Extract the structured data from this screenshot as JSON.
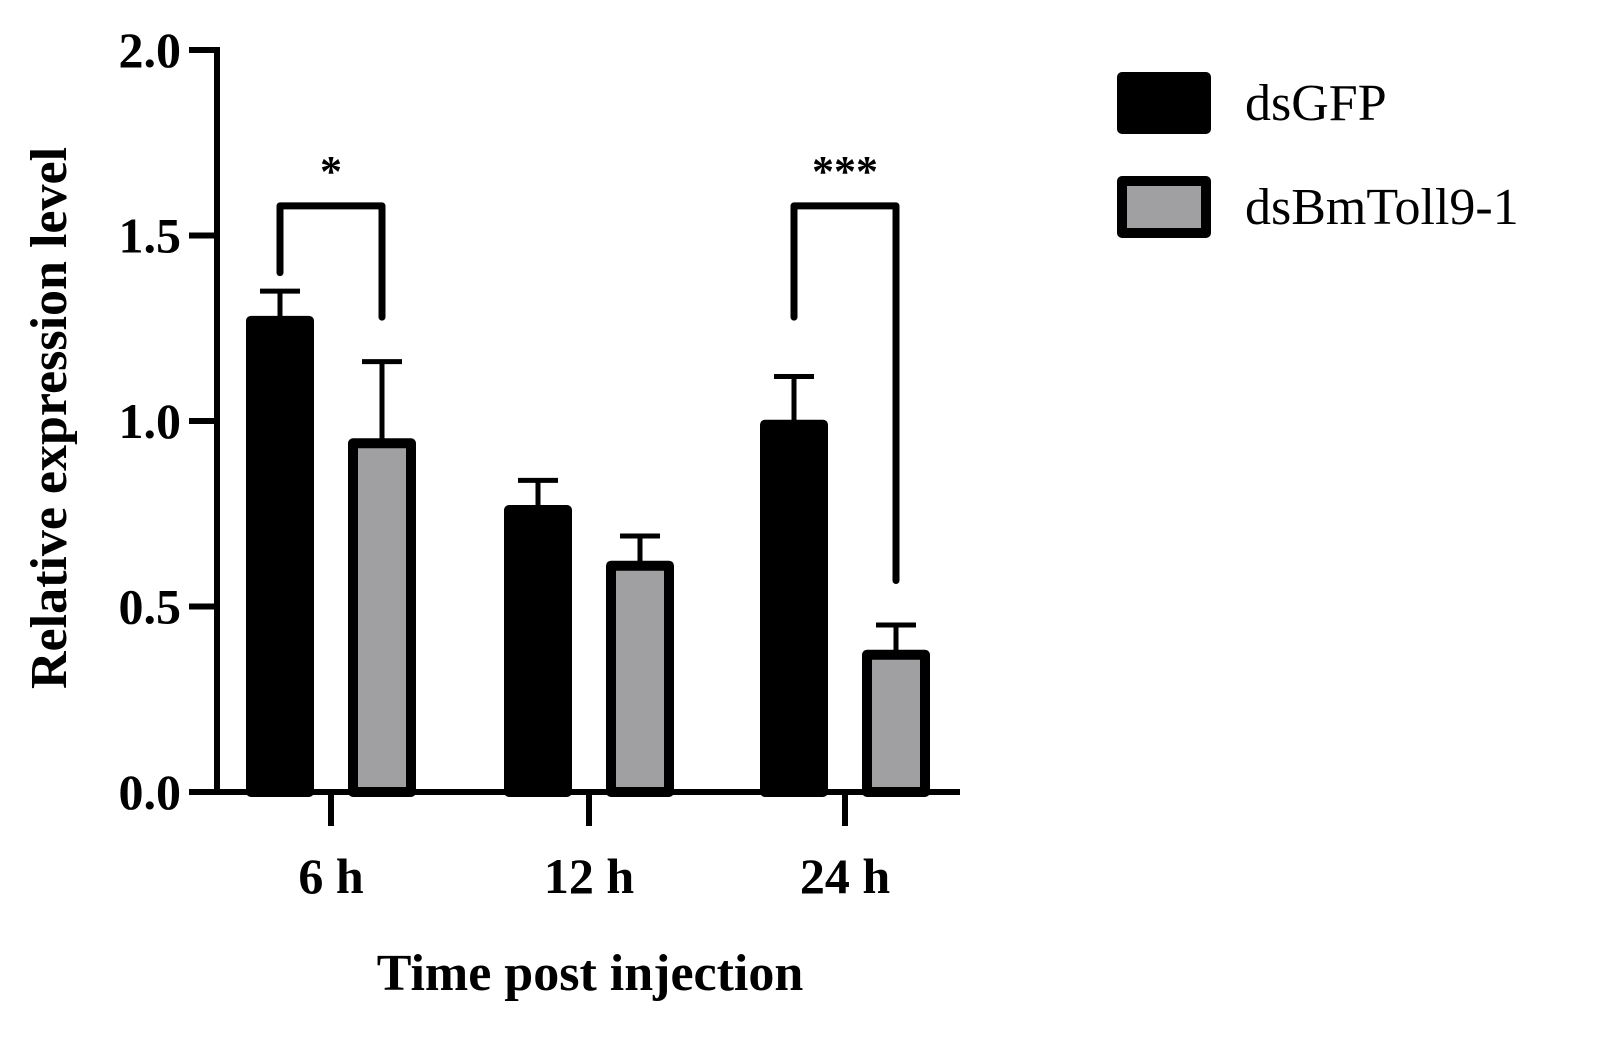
{
  "chart_data": {
    "type": "bar",
    "title": "",
    "xlabel": "Time post injection",
    "ylabel": "Relative expression level",
    "ylim": [
      0,
      2.0
    ],
    "yticks": [
      0.0,
      0.5,
      1.0,
      1.5,
      2.0
    ],
    "ytick_labels": [
      "0.0",
      "0.5",
      "1.0",
      "1.5",
      "2.0"
    ],
    "categories": [
      "6 h",
      "12 h",
      "24 h"
    ],
    "series": [
      {
        "name": "dsGFP",
        "color": "#000000",
        "values": [
          1.27,
          0.76,
          0.99
        ],
        "errors": [
          0.08,
          0.08,
          0.13
        ]
      },
      {
        "name": "dsBmToll9-1",
        "color": "#a0a0a2",
        "values": [
          0.94,
          0.61,
          0.37
        ],
        "errors": [
          0.22,
          0.08,
          0.08
        ]
      }
    ],
    "legend_position": "top-right",
    "significance": [
      {
        "category_index": 0,
        "label": "*",
        "bracket_y": 1.58,
        "left_end": 1.4,
        "right_end": 1.28
      },
      {
        "category_index": 2,
        "label": "***",
        "bracket_y": 1.58,
        "left_end": 1.28,
        "right_end": 0.57
      }
    ]
  }
}
